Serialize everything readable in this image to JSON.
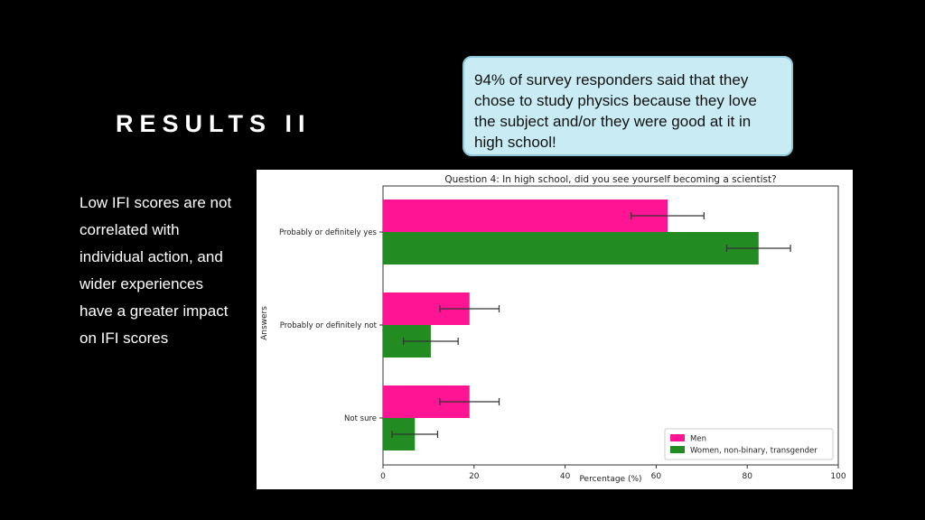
{
  "slide": {
    "title": "RESULTS II",
    "callout": "94% of survey responders said that they chose to study physics because they love the subject and/or they were good at it in high school!",
    "body": "Low IFI scores are not correlated with individual action, and wider experiences have a greater impact on IFI scores"
  },
  "colors": {
    "background": "#000000",
    "callout_bg": "#c9ecf4",
    "men": "#ff1493",
    "women": "#228b22"
  },
  "chart_data": {
    "type": "bar",
    "orientation": "horizontal",
    "title": "Question 4: In high school, did you see yourself becoming a scientist?",
    "xlabel": "Percentage (%)",
    "ylabel": "Answers",
    "xlim": [
      0,
      100
    ],
    "xticks": [
      0,
      20,
      40,
      60,
      80,
      100
    ],
    "categories": [
      "Probably or definitely yes",
      "Probably or definitely not",
      "Not sure"
    ],
    "series": [
      {
        "name": "Men",
        "color": "#ff1493",
        "values": [
          62.5,
          19,
          19
        ],
        "errors": [
          8,
          6.5,
          6.5
        ]
      },
      {
        "name": "Women, non-binary, transgender",
        "color": "#228b22",
        "values": [
          82.5,
          10.5,
          7
        ],
        "errors": [
          7,
          6,
          5
        ]
      }
    ],
    "legend": "bottom-right",
    "grid": false
  }
}
